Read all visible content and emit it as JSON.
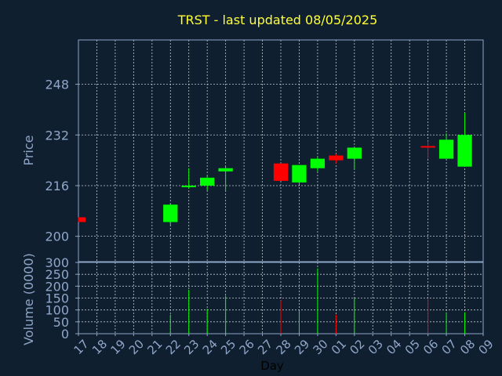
{
  "colors": {
    "background": "#0f1f30",
    "up": "#00ff00",
    "down": "#ff0000",
    "text": "#8fa6c8",
    "title": "#ffff33",
    "grid": "#ffffff"
  },
  "chart_data": {
    "type": "candlestick",
    "title": "TRST - last updated 08/05/2025",
    "xlabel": "Day",
    "ylabel": "Price",
    "volume_label": "Volume (0000)",
    "x_ticks": [
      "17",
      "18",
      "19",
      "20",
      "21",
      "22",
      "23",
      "24",
      "25",
      "26",
      "27",
      "28",
      "29",
      "30",
      "01",
      "02",
      "03",
      "04",
      "05",
      "06",
      "07",
      "08",
      "09"
    ],
    "price_ylim": [
      192,
      262
    ],
    "price_ticks": [
      200,
      216,
      232,
      248
    ],
    "volume_ylim": [
      0,
      300
    ],
    "volume_ticks": [
      0,
      50,
      100,
      150,
      200,
      250,
      300
    ],
    "grid": true,
    "candles": [
      {
        "day": "17",
        "open": 206.0,
        "close": 204.5,
        "high": 206.0,
        "low": 204.5,
        "volume": 0
      },
      {
        "day": "22",
        "open": 204.5,
        "close": 210.0,
        "high": 210.5,
        "low": 203.5,
        "volume": 80
      },
      {
        "day": "23",
        "open": 215.5,
        "close": 216.0,
        "high": 221.5,
        "low": 215.0,
        "volume": 185
      },
      {
        "day": "24",
        "open": 216.0,
        "close": 218.5,
        "high": 219.0,
        "low": 214.5,
        "volume": 105
      },
      {
        "day": "25",
        "open": 220.5,
        "close": 221.5,
        "high": 222.0,
        "low": 214.0,
        "volume": 160
      },
      {
        "day": "28",
        "open": 223.0,
        "close": 217.5,
        "high": 223.0,
        "low": 217.5,
        "volume": 140
      },
      {
        "day": "29",
        "open": 217.0,
        "close": 222.5,
        "high": 222.5,
        "low": 216.5,
        "volume": 100
      },
      {
        "day": "30",
        "open": 221.5,
        "close": 224.5,
        "high": 225.0,
        "low": 220.5,
        "volume": 275
      },
      {
        "day": "01",
        "open": 225.5,
        "close": 224.0,
        "high": 226.0,
        "low": 223.0,
        "volume": 80
      },
      {
        "day": "02",
        "open": 224.5,
        "close": 228.0,
        "high": 228.0,
        "low": 221.0,
        "volume": 150
      },
      {
        "day": "06",
        "open": 228.5,
        "close": 228.0,
        "high": 230.0,
        "low": 224.5,
        "volume": 150
      },
      {
        "day": "07",
        "open": 224.5,
        "close": 230.5,
        "high": 232.5,
        "low": 224.5,
        "volume": 90
      },
      {
        "day": "08",
        "open": 222.0,
        "close": 232.0,
        "high": 239.0,
        "low": 222.0,
        "volume": 90
      }
    ]
  }
}
